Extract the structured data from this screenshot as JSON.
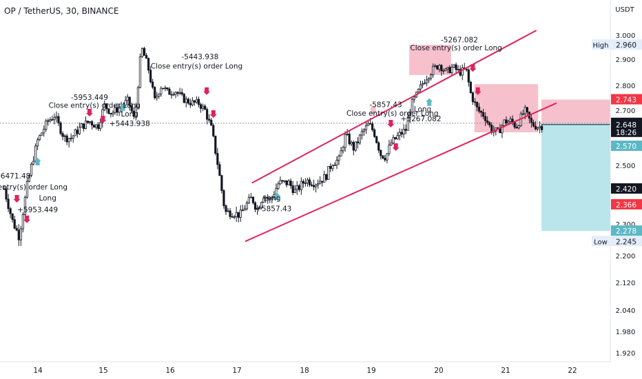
{
  "chart_data": {
    "type": "candlestick",
    "title": "OP / TetherUS, 30, BINANCE",
    "currency": "USDT",
    "y_axis": {
      "ticks": [
        "3.000",
        "2.900",
        "2.800",
        "2.700",
        "2.500",
        "2.300",
        "2.200",
        "2.120",
        "2.040",
        "1.980",
        "1.920"
      ],
      "labels": [
        {
          "value": 2.96,
          "text": "2.960",
          "tag": "High",
          "style": "light"
        },
        {
          "value": 2.743,
          "text": "2.743",
          "tag": "",
          "style": "red"
        },
        {
          "value": 2.653,
          "text": "2.653",
          "sub": "18:26",
          "tag": "",
          "style": "dark"
        },
        {
          "value": 2.648,
          "text": "2.648",
          "tag": "",
          "style": "dark"
        },
        {
          "value": 2.57,
          "text": "2.570",
          "tag": "",
          "style": "teal"
        },
        {
          "value": 2.42,
          "text": "2.420",
          "tag": "",
          "style": "dark"
        },
        {
          "value": 2.366,
          "text": "2.366",
          "tag": "",
          "style": "red"
        },
        {
          "value": 2.278,
          "text": "2.278",
          "tag": "",
          "style": "teal"
        },
        {
          "value": 2.245,
          "text": "2.245",
          "tag": "Low",
          "style": "light"
        }
      ]
    },
    "x_axis": {
      "ticks": [
        "14",
        "15",
        "16",
        "17",
        "18",
        "19",
        "20",
        "21",
        "22"
      ]
    },
    "price_path": [
      [
        0,
        2.42
      ],
      [
        0.25,
        2.31
      ],
      [
        0.45,
        2.26
      ],
      [
        0.7,
        2.44
      ],
      [
        1,
        2.59
      ],
      [
        1.3,
        2.66
      ],
      [
        1.5,
        2.68
      ],
      [
        1.8,
        2.6
      ],
      [
        2,
        2.6
      ],
      [
        2.3,
        2.64
      ],
      [
        2.55,
        2.66
      ],
      [
        2.8,
        2.64
      ],
      [
        3,
        2.72
      ],
      [
        3.2,
        2.69
      ],
      [
        3.45,
        2.71
      ],
      [
        3.7,
        2.74
      ],
      [
        3.9,
        2.66
      ],
      [
        4.1,
        2.95
      ],
      [
        4.3,
        2.87
      ],
      [
        4.5,
        2.74
      ],
      [
        4.7,
        2.8
      ],
      [
        4.9,
        2.77
      ],
      [
        5.1,
        2.78
      ],
      [
        5.4,
        2.74
      ],
      [
        5.6,
        2.73
      ],
      [
        5.8,
        2.73
      ],
      [
        6,
        2.7
      ],
      [
        6.2,
        2.63
      ],
      [
        6.4,
        2.49
      ],
      [
        6.6,
        2.34
      ],
      [
        6.8,
        2.34
      ],
      [
        7.05,
        2.33
      ],
      [
        7.2,
        2.36
      ],
      [
        7.4,
        2.39
      ],
      [
        7.55,
        2.35
      ],
      [
        7.75,
        2.4
      ],
      [
        7.95,
        2.38
      ],
      [
        8.2,
        2.44
      ],
      [
        8.5,
        2.44
      ],
      [
        8.7,
        2.41
      ],
      [
        9,
        2.45
      ],
      [
        9.3,
        2.44
      ],
      [
        9.6,
        2.46
      ],
      [
        9.8,
        2.51
      ],
      [
        10,
        2.52
      ],
      [
        10.2,
        2.61
      ],
      [
        10.45,
        2.56
      ],
      [
        10.7,
        2.62
      ],
      [
        10.9,
        2.65
      ],
      [
        11.05,
        2.62
      ],
      [
        11.25,
        2.54
      ],
      [
        11.4,
        2.53
      ],
      [
        11.55,
        2.58
      ],
      [
        11.8,
        2.61
      ],
      [
        12,
        2.63
      ],
      [
        12.15,
        2.72
      ],
      [
        12.35,
        2.77
      ],
      [
        12.55,
        2.82
      ],
      [
        12.8,
        2.86
      ],
      [
        13,
        2.88
      ],
      [
        13.2,
        2.85
      ],
      [
        13.4,
        2.87
      ],
      [
        13.6,
        2.85
      ],
      [
        13.8,
        2.86
      ],
      [
        13.95,
        2.76
      ],
      [
        14.15,
        2.7
      ],
      [
        14.35,
        2.68
      ],
      [
        14.55,
        2.63
      ],
      [
        14.75,
        2.62
      ],
      [
        14.95,
        2.66
      ],
      [
        15.15,
        2.66
      ],
      [
        15.3,
        2.64
      ],
      [
        15.55,
        2.7
      ],
      [
        15.75,
        2.65
      ],
      [
        15.95,
        2.64
      ],
      [
        16.1,
        2.645
      ]
    ],
    "trend_lines": [
      {
        "from": [
          7.2,
          2.245
        ],
        "to": [
          16.5,
          2.729
        ]
      },
      {
        "from": [
          7.4,
          2.44
        ],
        "to": [
          15.9,
          3.02
        ]
      }
    ],
    "positions": [
      {
        "kind": "stop",
        "color": "#f2a7b6",
        "x": [
          12.1,
          13.35
        ],
        "y": [
          2.84,
          2.96
        ]
      },
      {
        "kind": "stop",
        "color": "#f2a7b6",
        "x": [
          14.05,
          15.95
        ],
        "y": [
          2.62,
          2.805
        ]
      },
      {
        "kind": "stop",
        "color": "#f2a7b6",
        "x": [
          16.05,
          19.7
        ],
        "y": [
          2.653,
          2.743
        ]
      },
      {
        "kind": "target",
        "color": "#a8dfe6",
        "x": [
          16.05,
          19.7
        ],
        "y": [
          2.278,
          2.653
        ]
      },
      {
        "kind": "mark",
        "color": "#f2a7b6",
        "x": [
          10.95,
          11.1
        ],
        "y": [
          2.685,
          2.717
        ]
      }
    ],
    "annotations": [
      {
        "text": "-6471.48",
        "x": 0.3,
        "y": 2.455
      },
      {
        "text": "entry(s) order Long",
        "x": 0.85,
        "y": 2.418
      },
      {
        "text": "Long",
        "x": 1.3,
        "y": 2.38
      },
      {
        "text": "+5953.449",
        "x": 1.0,
        "y": 2.34
      },
      {
        "text": "-5953.449",
        "x": 2.55,
        "y": 2.742
      },
      {
        "text": "Close entry(s) order Long",
        "x": 2.7,
        "y": 2.71
      },
      {
        "text": "Long",
        "x": 3.75,
        "y": 2.677
      },
      {
        "text": "+5443.938",
        "x": 3.75,
        "y": 2.642
      },
      {
        "text": "-5443.938",
        "x": 5.85,
        "y": 2.9
      },
      {
        "text": "Close entry(s) order Long",
        "x": 5.75,
        "y": 2.864
      },
      {
        "text": "Long",
        "x": 8.0,
        "y": 2.38
      },
      {
        "text": "+5857.43",
        "x": 8.05,
        "y": 2.343
      },
      {
        "text": "-5857.43",
        "x": 11.4,
        "y": 2.713
      },
      {
        "text": "Close entry(s) order Long",
        "x": 11.6,
        "y": 2.68
      },
      {
        "text": "Long",
        "x": 12.5,
        "y": 2.695
      },
      {
        "text": "+5267.082",
        "x": 12.45,
        "y": 2.66
      },
      {
        "text": "-5267.082",
        "x": 13.6,
        "y": 2.97
      },
      {
        "text": "Close entry(s) order Long",
        "x": 13.5,
        "y": 2.937
      }
    ],
    "signals": [
      {
        "type": "exit",
        "x": 0.38,
        "y": 2.38
      },
      {
        "type": "exit",
        "x": 0.68,
        "y": 2.31
      },
      {
        "type": "exit",
        "x": 2.55,
        "y": 2.685
      },
      {
        "type": "exit",
        "x": 2.95,
        "y": 2.66
      },
      {
        "type": "exit",
        "x": 6.05,
        "y": 2.77
      },
      {
        "type": "exit",
        "x": 6.25,
        "y": 2.68
      },
      {
        "type": "exit",
        "x": 11.55,
        "y": 2.645
      },
      {
        "type": "exit",
        "x": 11.7,
        "y": 2.56
      },
      {
        "type": "exit",
        "x": 14.0,
        "y": 2.86
      },
      {
        "type": "exit",
        "x": 14.15,
        "y": 2.77
      },
      {
        "type": "entry",
        "x": 8.15,
        "y": 2.4
      },
      {
        "type": "entry",
        "x": 12.7,
        "y": 2.74
      },
      {
        "type": "entry",
        "x": 1.0,
        "y": 2.52
      },
      {
        "type": "entry",
        "x": 3.55,
        "y": 2.72
      }
    ],
    "colors": {
      "up": "#26a69a",
      "down": "#ef5350",
      "line": "#e0225a",
      "candle": "#131722",
      "dark_label": "#131722",
      "red_label": "#f23645",
      "teal_label": "#5cb8c4",
      "light_label": "#e3eefa"
    }
  }
}
